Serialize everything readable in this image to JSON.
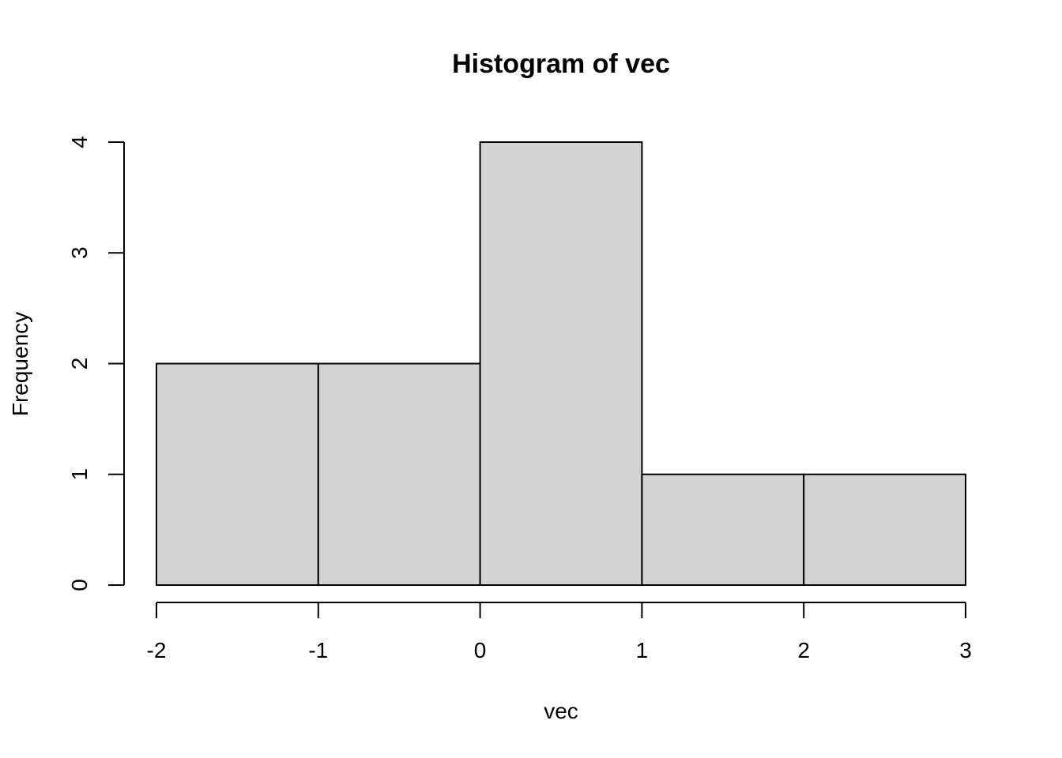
{
  "chart_data": {
    "type": "bar",
    "title": "Histogram of vec",
    "xlabel": "vec",
    "ylabel": "Frequency",
    "bins": [
      {
        "from": -2,
        "to": -1,
        "count": 2
      },
      {
        "from": -1,
        "to": 0,
        "count": 2
      },
      {
        "from": 0,
        "to": 1,
        "count": 4
      },
      {
        "from": 1,
        "to": 2,
        "count": 1
      },
      {
        "from": 2,
        "to": 3,
        "count": 1
      }
    ],
    "xlim": [
      -2,
      3
    ],
    "ylim": [
      0,
      4
    ],
    "x_ticks": [
      "-2",
      "-1",
      "0",
      "1",
      "2",
      "3"
    ],
    "y_ticks": [
      "0",
      "1",
      "2",
      "3",
      "4"
    ],
    "bar_color": "#d3d3d3",
    "grid": false,
    "legend": "none"
  }
}
